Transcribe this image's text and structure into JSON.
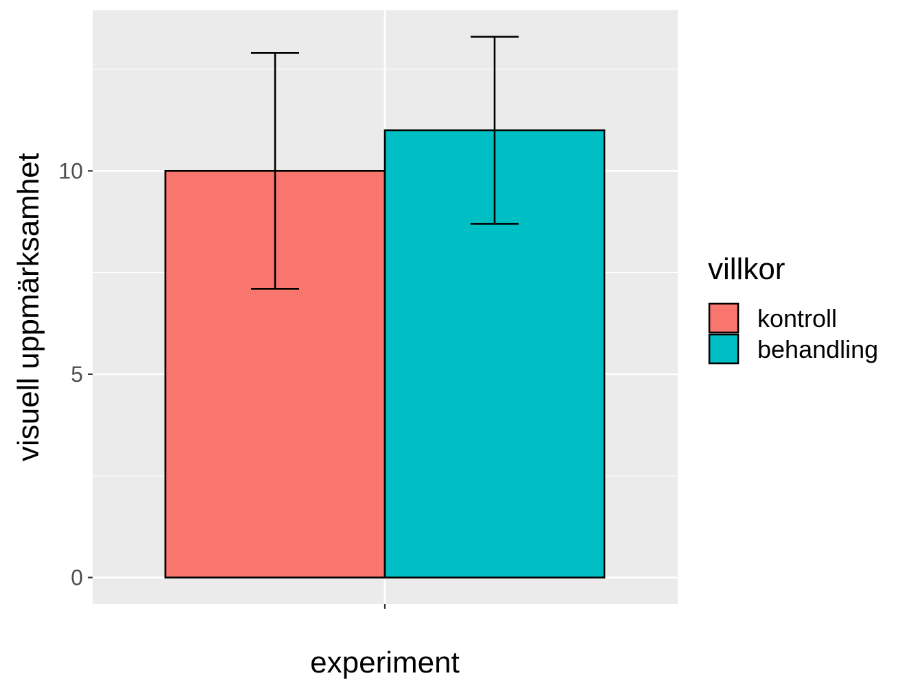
{
  "chart_data": {
    "type": "bar",
    "categories": [
      "experiment"
    ],
    "series": [
      {
        "name": "kontroll",
        "values": [
          10.0
        ],
        "error_low": [
          7.1
        ],
        "error_high": [
          12.9
        ],
        "color": "#F8766D"
      },
      {
        "name": "behandling",
        "values": [
          11.0
        ],
        "error_low": [
          8.7
        ],
        "error_high": [
          13.3
        ],
        "color": "#00BFC4"
      }
    ],
    "xlabel": "experiment",
    "ylabel": "visuell uppmärksamhet",
    "ylim": [
      -0.65,
      13.95
    ],
    "yticks": [
      0,
      5,
      10
    ],
    "ytick_labels": [
      "0",
      "5",
      "10"
    ],
    "grid": true,
    "legend": {
      "title": "villkor",
      "position": "right"
    },
    "panel_color": "#EBEBEB"
  }
}
